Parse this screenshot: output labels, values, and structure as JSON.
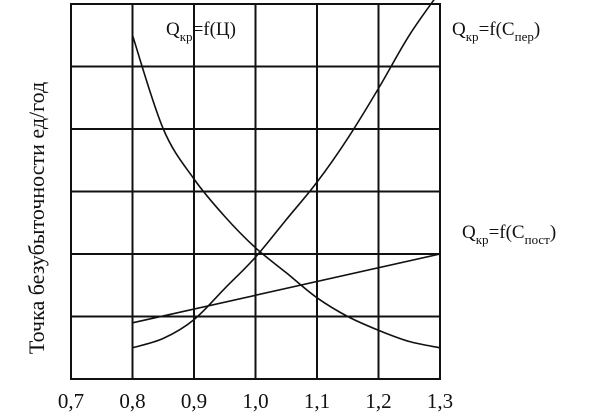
{
  "chart_data": {
    "type": "line",
    "title": "",
    "xlabel": "",
    "ylabel": "Точка безубыточности ед/год",
    "xlim": [
      0.7,
      1.3
    ],
    "ylim": [
      0,
      6
    ],
    "x_ticks": [
      "0,7",
      "0,8",
      "0,9",
      "1,0",
      "1,1",
      "1,2",
      "1,3"
    ],
    "y_ticks_labeled": false,
    "grid": true,
    "series": [
      {
        "label_main": "Q",
        "label_sub": "кр",
        "label_rest": "=f(Ц)",
        "x": [
          0.8,
          0.85,
          0.9,
          0.95,
          1.0,
          1.05,
          1.1,
          1.15,
          1.2,
          1.25,
          1.3
        ],
        "y": [
          5.5,
          4.0,
          3.2,
          2.6,
          2.1,
          1.7,
          1.3,
          1.0,
          0.78,
          0.6,
          0.5
        ]
      },
      {
        "label_main": "Q",
        "label_sub": "кр",
        "label_rest": "=f(С",
        "label_sub2": "пер",
        "label_end": ")",
        "x": [
          0.8,
          0.85,
          0.9,
          0.95,
          1.0,
          1.05,
          1.1,
          1.15,
          1.2,
          1.25,
          1.3
        ],
        "y": [
          0.5,
          0.65,
          0.95,
          1.45,
          1.95,
          2.55,
          3.15,
          3.85,
          4.65,
          5.5,
          6.2
        ]
      },
      {
        "label_main": "Q",
        "label_sub": "кр",
        "label_rest": "=f(С",
        "label_sub2": "пост",
        "label_end": ")",
        "x": [
          0.8,
          1.3
        ],
        "y": [
          0.9,
          2.0
        ]
      }
    ]
  }
}
